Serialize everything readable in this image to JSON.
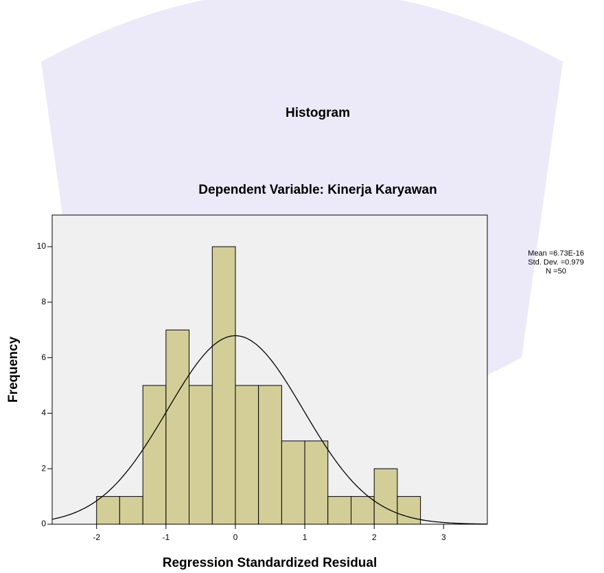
{
  "chart_data": {
    "type": "histogram",
    "title": "Histogram",
    "subtitle": "Dependent Variable: Kinerja Karyawan",
    "x_label": "Regression Standardized Residual",
    "y_label": "Frequency",
    "bins": [
      -2,
      -1.667,
      -1.333,
      -1,
      -0.667,
      -0.333,
      0,
      0.333,
      0.667,
      1,
      1.333,
      1.667,
      2,
      2.333,
      2.667
    ],
    "values": [
      1,
      1,
      5,
      7,
      5,
      10,
      5,
      5,
      3,
      3,
      1,
      1,
      2,
      1
    ],
    "color": "#d3ce97",
    "xlim": [
      -2.64,
      3.63
    ],
    "xticks": [
      -2,
      -1,
      0,
      1,
      2,
      3
    ],
    "ylim": [
      0,
      11.14
    ],
    "yticks": [
      0,
      2,
      4,
      6,
      8,
      10
    ],
    "normal_curve": true,
    "stats": {
      "mean": {
        "value": 6.73e-16,
        "label": "Mean =6.73E-16"
      },
      "sd": {
        "value": 0.979,
        "label": "Std. Dev. =0.979"
      },
      "n": {
        "value": 50,
        "label": "N =50"
      }
    }
  }
}
